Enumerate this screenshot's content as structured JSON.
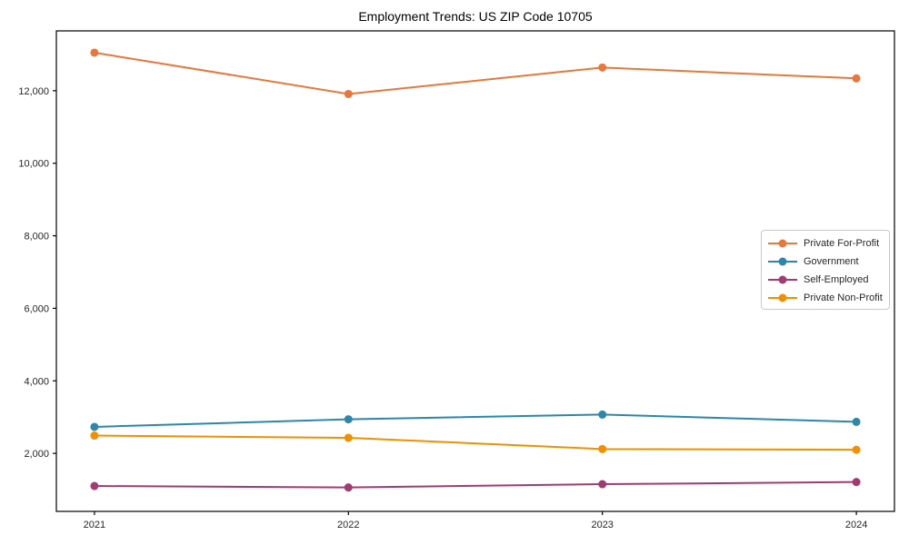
{
  "title": "Employment Trends: US ZIP Code 10705",
  "chart_data": {
    "type": "line",
    "title": "Employment Trends: US ZIP Code 10705",
    "x": [
      2021,
      2022,
      2023,
      2024
    ],
    "x_labels": [
      "2021",
      "2022",
      "2023",
      "2024"
    ],
    "series": [
      {
        "name": "Private For-Profit",
        "color": "#E8773C",
        "values": [
          13050,
          11910,
          12640,
          12340
        ]
      },
      {
        "name": "Government",
        "color": "#2E86AB",
        "values": [
          2730,
          2940,
          3070,
          2870
        ]
      },
      {
        "name": "Self-Employed",
        "color": "#A23B72",
        "values": [
          1100,
          1060,
          1150,
          1210
        ]
      },
      {
        "name": "Private Non-Profit",
        "color": "#F18F01",
        "values": [
          2490,
          2430,
          2120,
          2100
        ]
      }
    ],
    "xlabel": "",
    "ylabel": "",
    "xlim": [
      2020.85,
      2024.15
    ],
    "ylim": [
      400,
      13650
    ],
    "yticks": [
      2000,
      4000,
      6000,
      8000,
      10000,
      12000
    ],
    "ytick_labels": [
      "2,000",
      "4,000",
      "6,000",
      "8,000",
      "10,000",
      "12,000"
    ],
    "grid": false,
    "legend_position": "center right",
    "marker": "circle"
  },
  "colors": {
    "spine": "#000000",
    "tick_label": "#262626",
    "legend_border": "#c9c9c9",
    "background": "#ffffff"
  }
}
